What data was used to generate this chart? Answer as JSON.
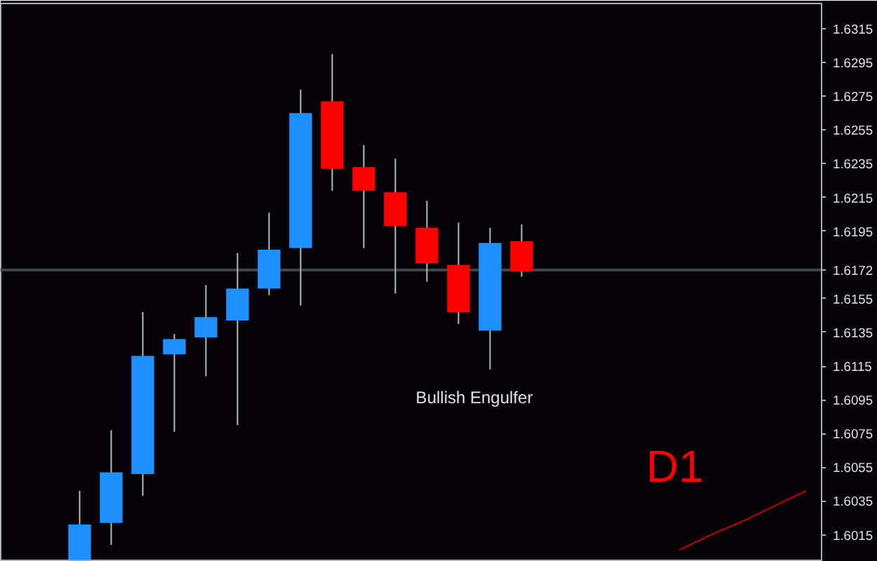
{
  "chart_data": {
    "type": "candlestick",
    "categories": [
      null,
      null,
      null,
      null,
      null,
      null,
      null,
      null,
      null,
      null,
      null,
      null,
      null,
      null,
      null,
      null,
      null,
      null,
      null,
      null,
      null,
      null,
      null,
      null,
      null,
      null
    ],
    "ohlc": [
      null,
      null,
      [
        1.6,
        1.6041,
        1.6,
        1.6021
      ],
      [
        1.6022,
        1.6077,
        1.6009,
        1.6052
      ],
      [
        1.6051,
        1.6147,
        1.6038,
        1.6121
      ],
      [
        1.6122,
        1.6134,
        1.6076,
        1.6131
      ],
      [
        1.6132,
        1.6163,
        1.6109,
        1.6144
      ],
      [
        1.6142,
        1.6182,
        1.608,
        1.6161
      ],
      [
        1.6161,
        1.6206,
        1.6157,
        1.6184
      ],
      [
        1.6185,
        1.6279,
        1.6151,
        1.6265
      ],
      [
        1.6272,
        1.63,
        1.6219,
        1.6232
      ],
      [
        1.6233,
        1.6246,
        1.6185,
        1.6219
      ],
      [
        1.6218,
        1.6238,
        1.6158,
        1.6198
      ],
      [
        1.6197,
        1.6213,
        1.6165,
        1.6176
      ],
      [
        1.6175,
        1.62,
        1.614,
        1.6147
      ],
      [
        1.6136,
        1.6197,
        1.6113,
        1.6188
      ],
      [
        1.6189,
        1.6199,
        1.6168,
        1.6171
      ],
      null,
      null,
      null,
      null,
      null,
      null,
      null,
      null,
      null
    ],
    "colors": [
      null,
      null,
      "#1e90ff",
      "#1e90ff",
      "#1e90ff",
      "#1e90ff",
      "#1e90ff",
      "#1e90ff",
      "#1e90ff",
      "#1e90ff",
      "#ff0000",
      "#ff0000",
      "#ff0000",
      "#ff0000",
      "#ff0000",
      "#1e90ff",
      "#ff0000",
      null,
      null,
      null,
      null,
      null,
      null,
      null,
      null,
      null
    ],
    "series": [
      {
        "type": "line",
        "color": "#c00000",
        "values": [
          null,
          null,
          null,
          null,
          null,
          null,
          null,
          null,
          null,
          null,
          null,
          null,
          null,
          null,
          null,
          null,
          null,
          null,
          null,
          null,
          null,
          1.6006,
          1.6015,
          1.6023,
          1.6032,
          1.6041
        ]
      }
    ],
    "ylim": [
      1.5999,
      1.633
    ],
    "yticks": [
      1.6015,
      1.6035,
      1.6055,
      1.6075,
      1.6095,
      1.6115,
      1.6135,
      1.6155,
      1.6195,
      1.6215,
      1.6235,
      1.6255,
      1.6275,
      1.6295,
      1.6315
    ],
    "tick_labels": "y",
    "grid": false,
    "ref_lines": [
      {
        "axis": "y",
        "value": 1.6172,
        "label": "1.6172",
        "color": "#3c4646"
      }
    ],
    "annotations": [
      "Bullish Engulfer",
      "D1"
    ]
  }
}
